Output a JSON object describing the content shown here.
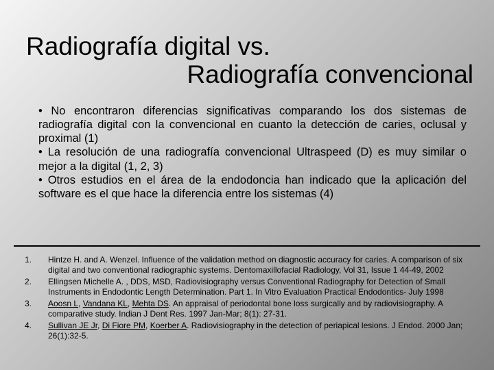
{
  "title": {
    "line1": "Radiografía digital vs.",
    "line2": "Radiografía convencional"
  },
  "bullets": {
    "b1": "• No encontraron diferencias significativas comparando los dos sistemas de radiografía digital con la convencional en cuanto la detección de caries, oclusal y proximal (1)",
    "b2": "• La resolución de una radiografía convencional Ultraspeed (D) es muy similar o mejor a la digital (1, 2, 3)",
    "b3": "• Otros estudios en el área de la endodoncia han indicado que la aplicación del software es el que hace la diferencia entre los sistemas  (4)"
  },
  "refs": {
    "r1": {
      "num": "1.",
      "text": "Hintze H. and A. Wenzel. Influence of the validation method on diagnostic accuracy for caries. A comparison of six digital and two conventional radiographic systems. Dentomaxillofacial Radiology, Vol 31, Issue 1 44-49, 2002"
    },
    "r2": {
      "num": "2.",
      "text": "Ellingsen Michelle A. , DDS, MSD, Radiovisiography versus Conventional Radiography for Detection of Small Instruments in Endodontic Length Determination. Part 1. In Vitro Evaluation Practical Endodontics- July 1998"
    },
    "r3": {
      "num": "3.",
      "a1": "Aoosn L",
      "c1": ", ",
      "a2": "Vandana KL",
      "c2": ", ",
      "a3": "Mehta DS",
      "rest": ". An appraisal of periodontal bone loss surgically and by radiovisiography. A comparative study. Indian J Dent Res. 1997 Jan-Mar; 8(1): 27-31."
    },
    "r4": {
      "num": "4.",
      "a1": "Sullivan JE Jr",
      "c1": ", ",
      "a2": "Di Fiore PM",
      "c2": ", ",
      "a3": "Koerber A",
      "rest": ". Radiovisiography in the detection of periapical lesions. J Endod. 2000 Jan; 26(1):32-5."
    }
  },
  "colors": {
    "text": "#000000",
    "bg_light": "#f5f5f5",
    "bg_dark": "#808080",
    "divider": "#000000"
  },
  "fonts": {
    "title_size": 37,
    "body_size": 16.5,
    "ref_size": 12
  }
}
